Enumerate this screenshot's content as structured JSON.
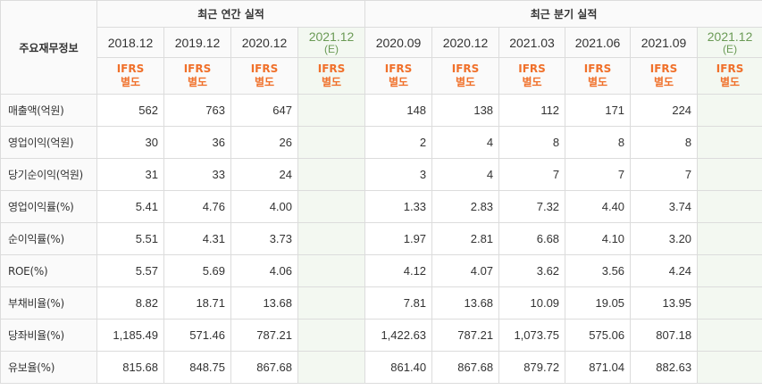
{
  "table": {
    "corner_label": "주요재무정보",
    "annual_header": "최근 연간 실적",
    "quarter_header": "최근 분기 실적",
    "annual_periods": [
      {
        "date": "2018.12",
        "e": ""
      },
      {
        "date": "2019.12",
        "e": ""
      },
      {
        "date": "2020.12",
        "e": ""
      },
      {
        "date": "2021.12",
        "e": "(E)"
      }
    ],
    "quarter_periods": [
      {
        "date": "2020.09",
        "e": ""
      },
      {
        "date": "2020.12",
        "e": ""
      },
      {
        "date": "2021.03",
        "e": ""
      },
      {
        "date": "2021.06",
        "e": ""
      },
      {
        "date": "2021.09",
        "e": ""
      },
      {
        "date": "2021.12",
        "e": "(E)"
      }
    ],
    "ifrs_line1": "IFRS",
    "ifrs_line2": "별도",
    "rows": [
      {
        "label": "매출액(억원)",
        "annual": [
          "562",
          "763",
          "647",
          ""
        ],
        "quarter": [
          "148",
          "138",
          "112",
          "171",
          "224",
          ""
        ]
      },
      {
        "label": "영업이익(억원)",
        "annual": [
          "30",
          "36",
          "26",
          ""
        ],
        "quarter": [
          "2",
          "4",
          "8",
          "8",
          "8",
          ""
        ]
      },
      {
        "label": "당기순이익(억원)",
        "annual": [
          "31",
          "33",
          "24",
          ""
        ],
        "quarter": [
          "3",
          "4",
          "7",
          "7",
          "7",
          ""
        ]
      },
      {
        "label": "영업이익률(%)",
        "annual": [
          "5.41",
          "4.76",
          "4.00",
          ""
        ],
        "quarter": [
          "1.33",
          "2.83",
          "7.32",
          "4.40",
          "3.74",
          ""
        ]
      },
      {
        "label": "순이익률(%)",
        "annual": [
          "5.51",
          "4.31",
          "3.73",
          ""
        ],
        "quarter": [
          "1.97",
          "2.81",
          "6.68",
          "4.10",
          "3.20",
          ""
        ]
      },
      {
        "label": "ROE(%)",
        "annual": [
          "5.57",
          "5.69",
          "4.06",
          ""
        ],
        "quarter": [
          "4.12",
          "4.07",
          "3.62",
          "3.56",
          "4.24",
          ""
        ]
      },
      {
        "label": "부채비율(%)",
        "annual": [
          "8.82",
          "18.71",
          "13.68",
          ""
        ],
        "quarter": [
          "7.81",
          "13.68",
          "10.09",
          "19.05",
          "13.95",
          ""
        ]
      },
      {
        "label": "당좌비율(%)",
        "annual": [
          "1,185.49",
          "571.46",
          "787.21",
          ""
        ],
        "quarter": [
          "1,422.63",
          "787.21",
          "1,073.75",
          "575.06",
          "807.18",
          ""
        ]
      },
      {
        "label": "유보율(%)",
        "annual": [
          "815.68",
          "848.75",
          "867.68",
          ""
        ],
        "quarter": [
          "861.40",
          "867.68",
          "879.72",
          "871.04",
          "882.63",
          ""
        ]
      }
    ]
  },
  "colors": {
    "ifrs_text": "#f0702a",
    "estimate_bg": "#f3f8f1",
    "estimate_text": "#6a9a55",
    "border": "#dcdcdc"
  }
}
